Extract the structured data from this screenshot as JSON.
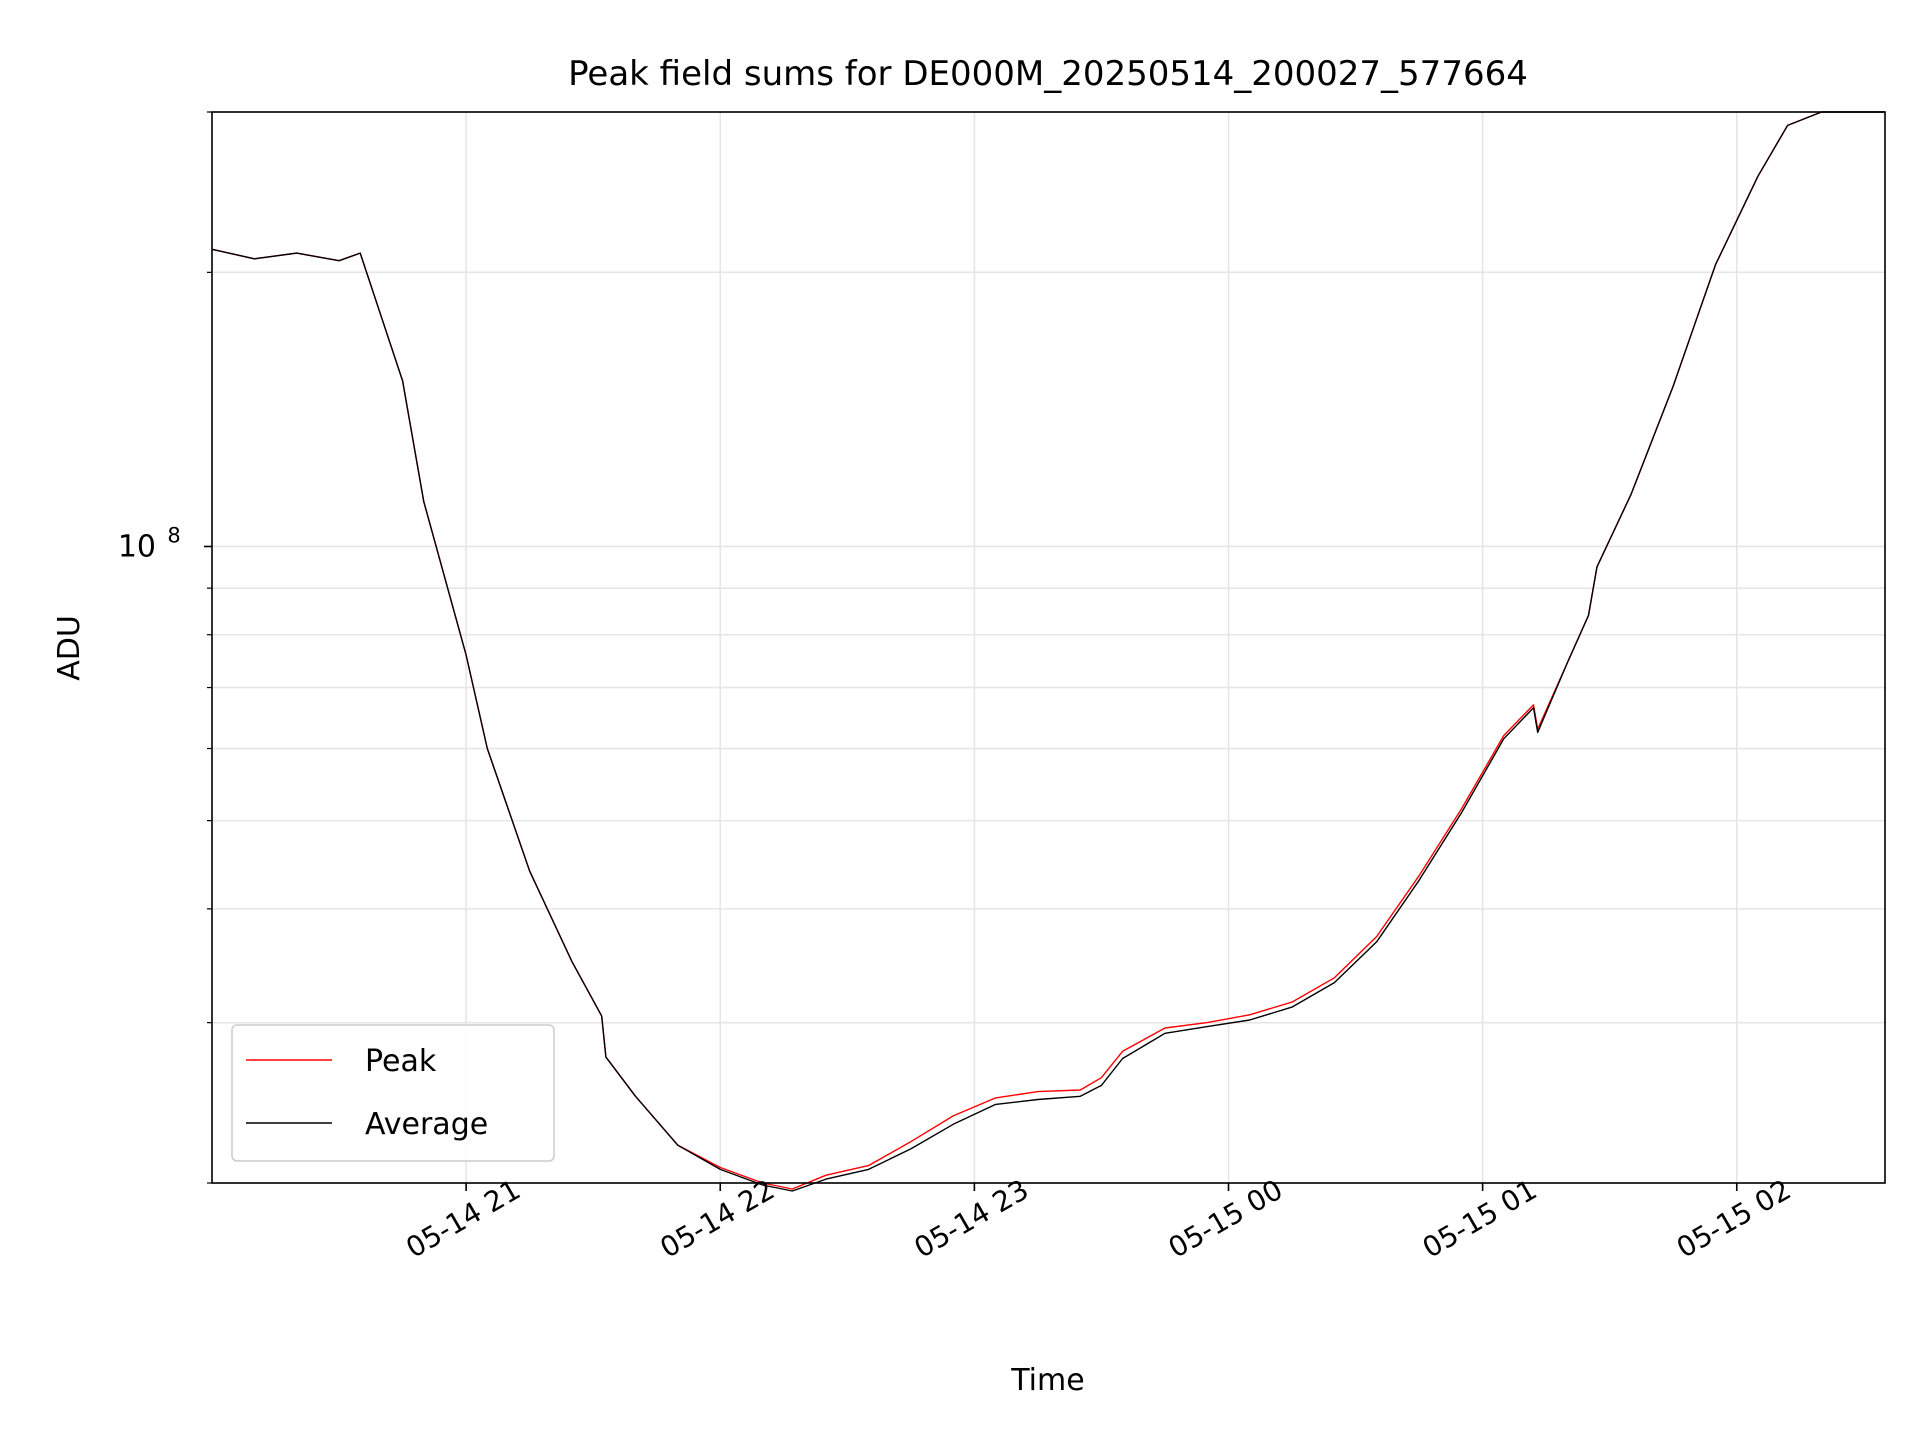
{
  "chart_data": {
    "type": "line",
    "title": "Peak field sums for DE000M_20250514_200027_577664",
    "xlabel": "Time",
    "ylabel": "ADU",
    "x_tick_labels": [
      "05-14 21",
      "05-14 22",
      "05-14 23",
      "05-15 00",
      "05-15 01",
      "05-15 02"
    ],
    "y_tick_labels": [
      {
        "base": "10",
        "exp": "8"
      }
    ],
    "yscale": "log",
    "xlim": [
      "2025-05-14 20:00",
      "2025-05-15 02:35"
    ],
    "ylim": [
      20000000,
      300000000
    ],
    "grid": true,
    "legend_position": "lower-left",
    "series": [
      {
        "name": "Peak",
        "color": "#ff0000",
        "x": [
          "2025-05-14 20:00",
          "2025-05-14 20:10",
          "2025-05-14 20:20",
          "2025-05-14 20:30",
          "2025-05-14 20:35",
          "2025-05-14 20:45",
          "2025-05-14 20:50",
          "2025-05-14 21:00",
          "2025-05-14 21:05",
          "2025-05-14 21:15",
          "2025-05-14 21:25",
          "2025-05-14 21:32",
          "2025-05-14 21:33",
          "2025-05-14 21:40",
          "2025-05-14 21:50",
          "2025-05-14 22:00",
          "2025-05-14 22:10",
          "2025-05-14 22:17",
          "2025-05-14 22:25",
          "2025-05-14 22:35",
          "2025-05-14 22:45",
          "2025-05-14 22:55",
          "2025-05-14 23:05",
          "2025-05-14 23:15",
          "2025-05-14 23:25",
          "2025-05-14 23:30",
          "2025-05-14 23:35",
          "2025-05-14 23:45",
          "2025-05-14 23:55",
          "2025-05-15 00:05",
          "2025-05-15 00:15",
          "2025-05-15 00:25",
          "2025-05-15 00:35",
          "2025-05-15 00:45",
          "2025-05-15 00:55",
          "2025-05-15 01:05",
          "2025-05-15 01:12",
          "2025-05-15 01:13",
          "2025-05-15 01:20",
          "2025-05-15 01:25",
          "2025-05-15 01:27",
          "2025-05-15 01:35",
          "2025-05-15 01:45",
          "2025-05-15 01:50",
          "2025-05-15 01:55",
          "2025-05-15 02:05",
          "2025-05-15 02:12",
          "2025-05-15 02:20",
          "2025-05-15 02:35"
        ],
        "y": [
          212000000,
          207000000,
          210000000,
          206000000,
          210000000,
          152000000,
          112000000,
          76000000,
          60000000,
          44000000,
          35000000,
          30500000,
          27500000,
          24900000,
          22000000,
          20800000,
          20000000,
          19700000,
          20400000,
          20900000,
          22200000,
          23700000,
          24800000,
          25200000,
          25300000,
          26100000,
          27900000,
          29600000,
          30000000,
          30600000,
          31600000,
          33600000,
          37300000,
          43500000,
          51500000,
          62000000,
          67000000,
          63000000,
          74500000,
          84000000,
          95000000,
          114000000,
          150000000,
          175000000,
          204000000,
          255000000,
          290000000,
          300000000,
          300000000
        ]
      },
      {
        "name": "Average",
        "color": "#000000",
        "x": [
          "2025-05-14 20:00",
          "2025-05-14 20:10",
          "2025-05-14 20:20",
          "2025-05-14 20:30",
          "2025-05-14 20:35",
          "2025-05-14 20:45",
          "2025-05-14 20:50",
          "2025-05-14 21:00",
          "2025-05-14 21:05",
          "2025-05-14 21:15",
          "2025-05-14 21:25",
          "2025-05-14 21:32",
          "2025-05-14 21:33",
          "2025-05-14 21:40",
          "2025-05-14 21:50",
          "2025-05-14 22:00",
          "2025-05-14 22:10",
          "2025-05-14 22:17",
          "2025-05-14 22:25",
          "2025-05-14 22:35",
          "2025-05-14 22:45",
          "2025-05-14 22:55",
          "2025-05-14 23:05",
          "2025-05-14 23:15",
          "2025-05-14 23:25",
          "2025-05-14 23:30",
          "2025-05-14 23:35",
          "2025-05-14 23:45",
          "2025-05-14 23:55",
          "2025-05-15 00:05",
          "2025-05-15 00:15",
          "2025-05-15 00:25",
          "2025-05-15 00:35",
          "2025-05-15 00:45",
          "2025-05-15 00:55",
          "2025-05-15 01:05",
          "2025-05-15 01:12",
          "2025-05-15 01:13",
          "2025-05-15 01:20",
          "2025-05-15 01:25",
          "2025-05-15 01:27",
          "2025-05-15 01:35",
          "2025-05-15 01:45",
          "2025-05-15 01:50",
          "2025-05-15 01:55",
          "2025-05-15 02:05",
          "2025-05-15 02:12",
          "2025-05-15 02:20",
          "2025-05-15 02:35"
        ],
        "y": [
          212000000,
          207000000,
          210000000,
          206000000,
          210000000,
          152000000,
          112000000,
          76000000,
          60000000,
          44000000,
          35000000,
          30500000,
          27500000,
          24900000,
          22000000,
          20700000,
          19900000,
          19600000,
          20200000,
          20700000,
          21800000,
          23200000,
          24400000,
          24700000,
          24900000,
          25600000,
          27400000,
          29200000,
          29700000,
          30200000,
          31200000,
          33200000,
          36800000,
          43000000,
          51000000,
          61500000,
          66500000,
          62500000,
          74500000,
          84000000,
          95000000,
          114000000,
          150000000,
          175000000,
          204000000,
          255000000,
          290000000,
          300000000,
          300000000
        ]
      }
    ]
  }
}
